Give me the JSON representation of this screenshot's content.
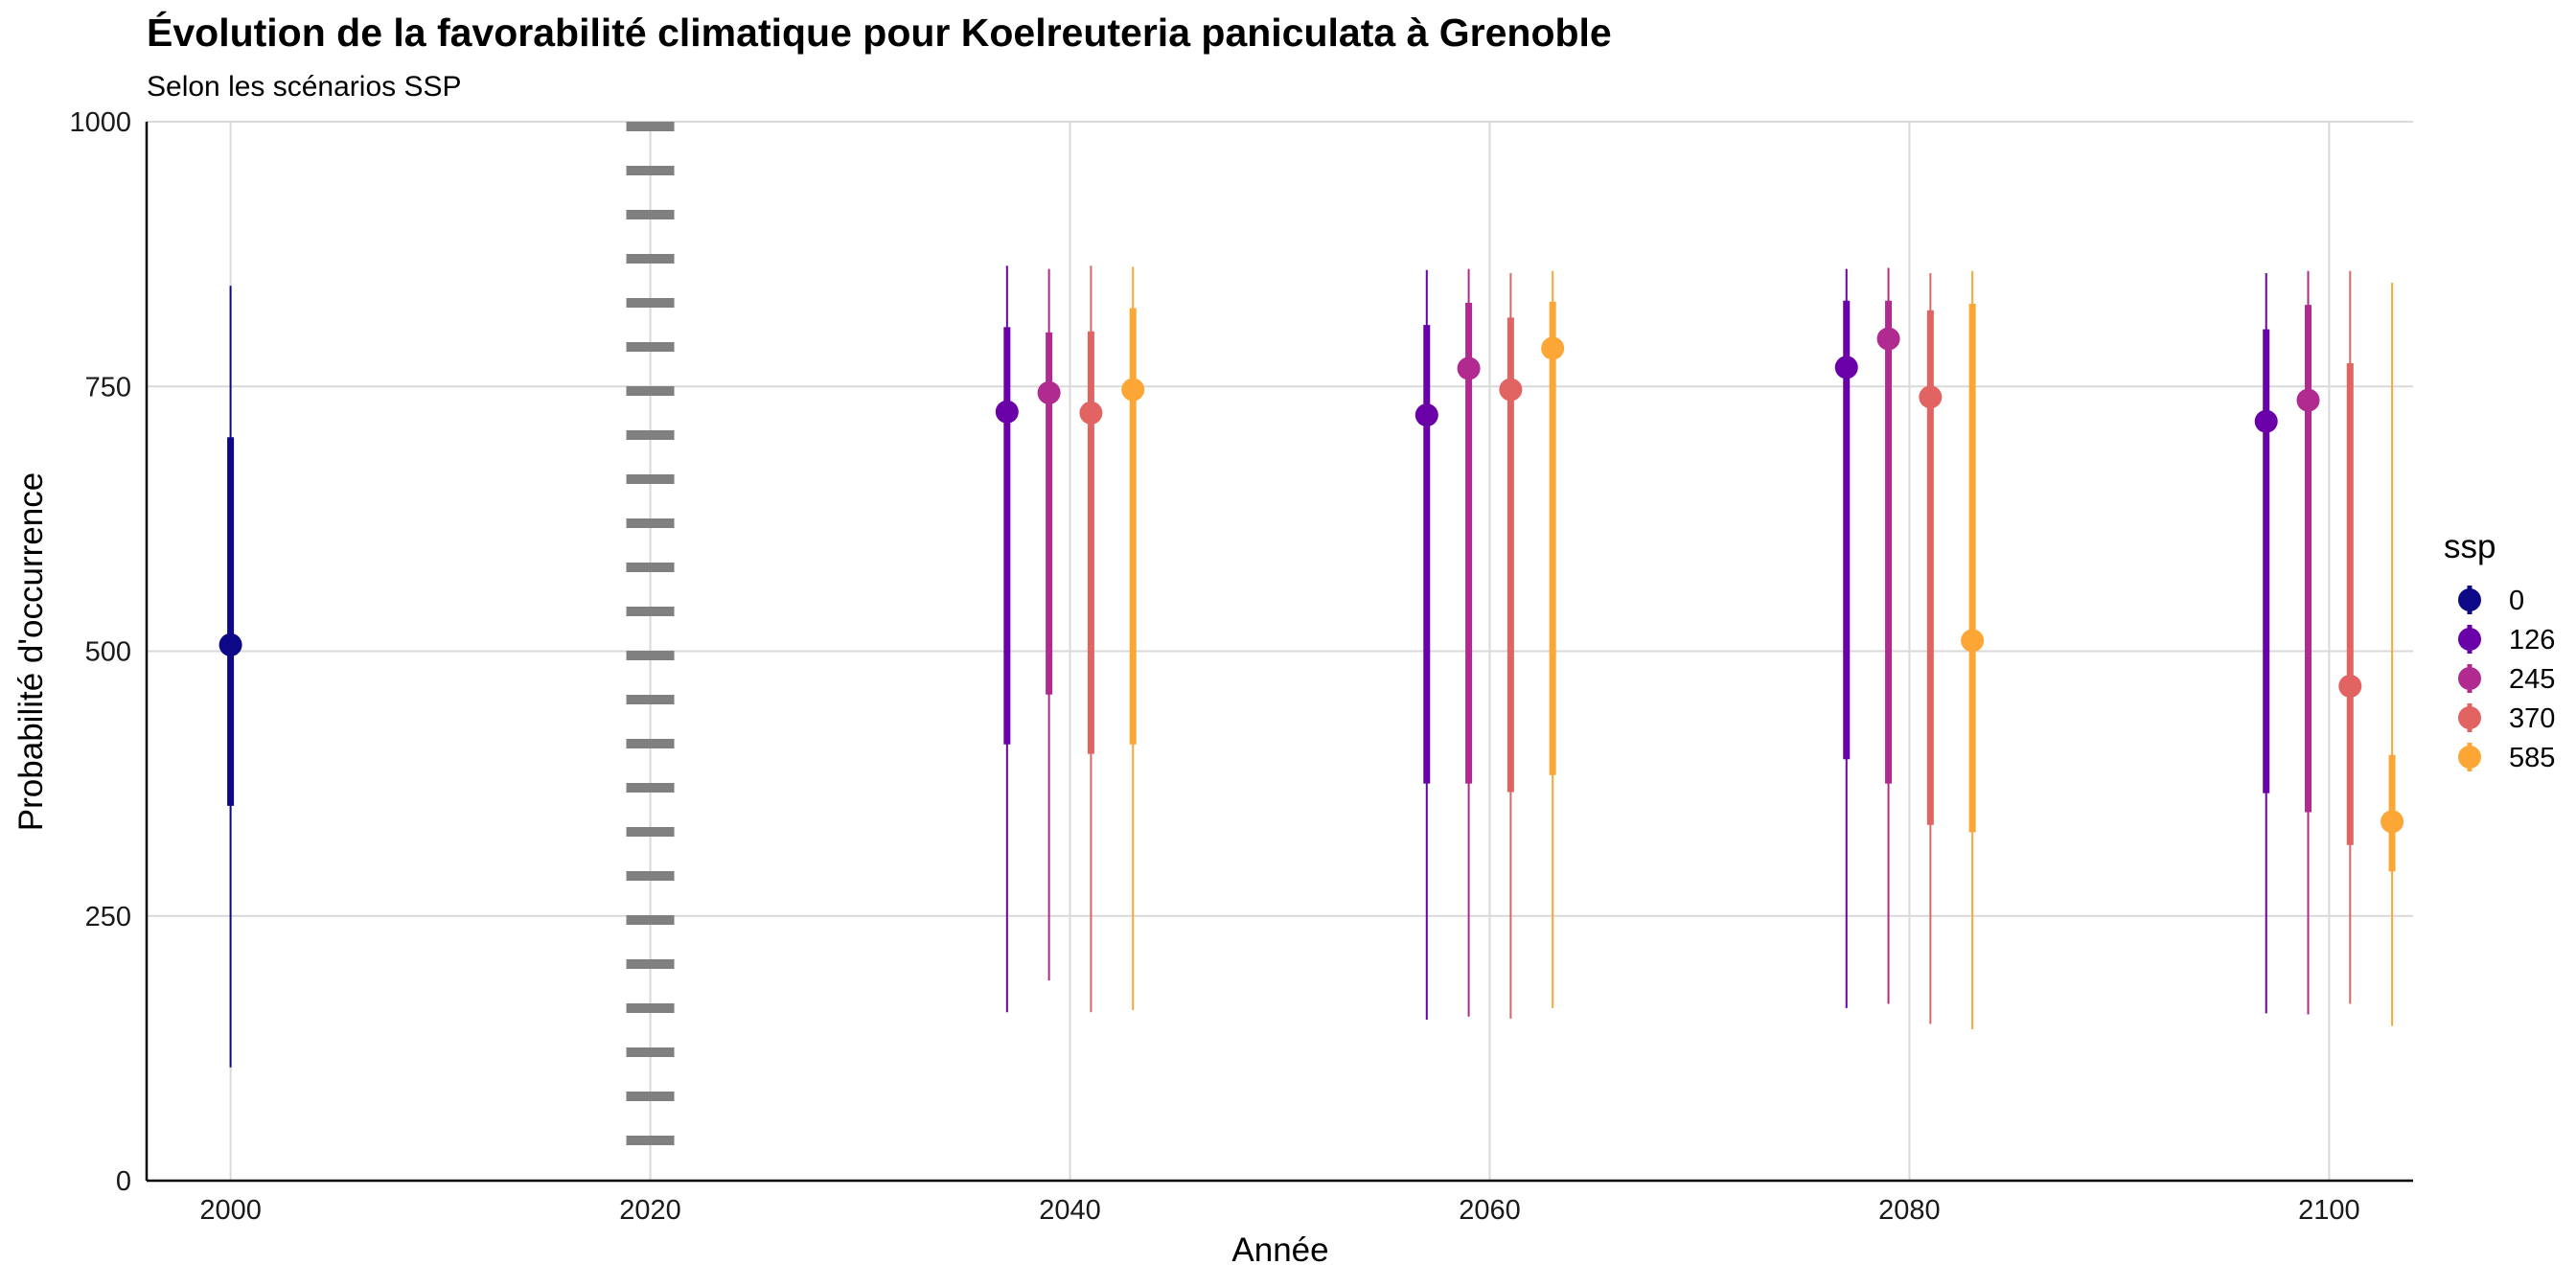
{
  "chart_data": {
    "type": "pointrange",
    "title": "Évolution de la favorabilité climatique pour Koelreuteria paniculata à Grenoble",
    "subtitle": "Selon les scénarios SSP",
    "xlabel": "Année",
    "ylabel": "Probabilité d'occurrence",
    "xlim": [
      1996,
      2104
    ],
    "ylim": [
      0,
      1000
    ],
    "x_ticks": [
      "2000",
      "2020",
      "2040",
      "2060",
      "2080",
      "2100"
    ],
    "y_ticks": [
      "0",
      "250",
      "500",
      "750",
      "1000"
    ],
    "grid": true,
    "reference_line": {
      "x": 2020,
      "style": "dotted",
      "color": "#808080"
    },
    "legend": {
      "title": "ssp",
      "position": "right"
    },
    "series": [
      {
        "name": "0",
        "color": "#0d0887",
        "points": [
          {
            "x": 2000,
            "y": 506,
            "inner": [
              354,
              702
            ],
            "outer": [
              107,
              845
            ]
          }
        ]
      },
      {
        "name": "126",
        "color": "#6a00a8",
        "points": [
          {
            "x": 2037,
            "y": 726,
            "inner": [
              412,
              806
            ],
            "outer": [
              159,
              864
            ]
          },
          {
            "x": 2057,
            "y": 723,
            "inner": [
              375,
              808
            ],
            "outer": [
              152,
              860
            ]
          },
          {
            "x": 2077,
            "y": 768,
            "inner": [
              398,
              831
            ],
            "outer": [
              163,
              861
            ]
          },
          {
            "x": 2097,
            "y": 717,
            "inner": [
              366,
              804
            ],
            "outer": [
              158,
              857
            ]
          }
        ]
      },
      {
        "name": "245",
        "color": "#b12a90",
        "points": [
          {
            "x": 2039,
            "y": 744,
            "inner": [
              459,
              801
            ],
            "outer": [
              189,
              861
            ]
          },
          {
            "x": 2059,
            "y": 767,
            "inner": [
              375,
              829
            ],
            "outer": [
              155,
              861
            ]
          },
          {
            "x": 2079,
            "y": 795,
            "inner": [
              375,
              831
            ],
            "outer": [
              167,
              862
            ]
          },
          {
            "x": 2099,
            "y": 737,
            "inner": [
              348,
              827
            ],
            "outer": [
              157,
              859
            ]
          }
        ]
      },
      {
        "name": "370",
        "color": "#e16462",
        "points": [
          {
            "x": 2041,
            "y": 725,
            "inner": [
              403,
              802
            ],
            "outer": [
              159,
              864
            ]
          },
          {
            "x": 2061,
            "y": 747,
            "inner": [
              367,
              815
            ],
            "outer": [
              153,
              857
            ]
          },
          {
            "x": 2081,
            "y": 740,
            "inner": [
              336,
              822
            ],
            "outer": [
              148,
              857
            ]
          },
          {
            "x": 2101,
            "y": 467,
            "inner": [
              317,
              772
            ],
            "outer": [
              167,
              859
            ]
          }
        ]
      },
      {
        "name": "585",
        "color": "#fca636",
        "points": [
          {
            "x": 2043,
            "y": 747,
            "inner": [
              412,
              824
            ],
            "outer": [
              161,
              863
            ]
          },
          {
            "x": 2063,
            "y": 786,
            "inner": [
              383,
              830
            ],
            "outer": [
              163,
              859
            ]
          },
          {
            "x": 2083,
            "y": 510,
            "inner": [
              329,
              828
            ],
            "outer": [
              143,
              859
            ]
          },
          {
            "x": 2103,
            "y": 339,
            "inner": [
              292,
              402
            ],
            "outer": [
              146,
              848
            ]
          }
        ]
      }
    ]
  }
}
